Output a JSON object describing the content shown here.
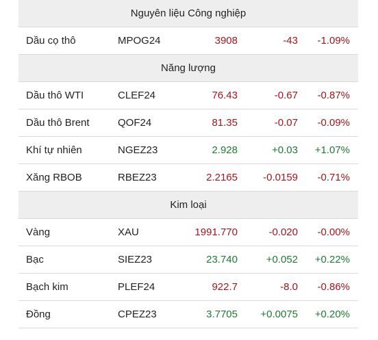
{
  "colors": {
    "negative": "#a5151c",
    "positive": "#1e7a35",
    "header_bg": "#eeeeee"
  },
  "sections": [
    {
      "title": "Nguyên liệu Công nghiệp",
      "rows": [
        {
          "name": "Dầu cọ thô",
          "code": "MPOG24",
          "price": "3908",
          "change": "-43",
          "pct": "-1.09%",
          "trend": "neg"
        }
      ]
    },
    {
      "title": "Năng lượng",
      "rows": [
        {
          "name": "Dầu thô WTI",
          "code": "CLEF24",
          "price": "76.43",
          "change": "-0.67",
          "pct": "-0.87%",
          "trend": "neg"
        },
        {
          "name": "Dầu thô Brent",
          "code": "QOF24",
          "price": "81.35",
          "change": "-0.07",
          "pct": "-0.09%",
          "trend": "neg"
        },
        {
          "name": "Khí tự nhiên",
          "code": "NGEZ23",
          "price": "2.928",
          "change": "+0.03",
          "pct": "+1.07%",
          "trend": "pos"
        },
        {
          "name": "Xăng RBOB",
          "code": "RBEZ23",
          "price": "2.2165",
          "change": "-0.0159",
          "pct": "-0.71%",
          "trend": "neg"
        }
      ]
    },
    {
      "title": "Kim loại",
      "rows": [
        {
          "name": "Vàng",
          "code": "XAU",
          "price": "1991.770",
          "change": "-0.020",
          "pct": "-0.00%",
          "trend": "neg"
        },
        {
          "name": "Bạc",
          "code": "SIEZ23",
          "price": "23.740",
          "change": "+0.052",
          "pct": "+0.22%",
          "trend": "pos"
        },
        {
          "name": "Bạch kim",
          "code": "PLEF24",
          "price": "922.7",
          "change": "-8.0",
          "pct": "-0.86%",
          "trend": "neg"
        },
        {
          "name": "Đồng",
          "code": "CPEZ23",
          "price": "3.7705",
          "change": "+0.0075",
          "pct": "+0.20%",
          "trend": "pos"
        }
      ]
    }
  ]
}
